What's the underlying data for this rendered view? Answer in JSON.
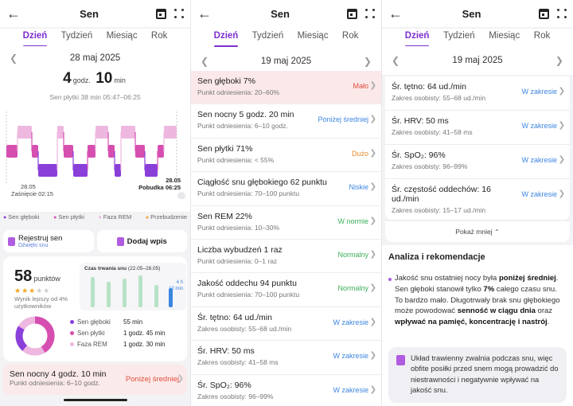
{
  "colors": {
    "accent": "#7d2fd0",
    "deep": "#8a3fd9",
    "light": "#d64fb0",
    "rem": "#eeb7e0",
    "wake": "#f2a13a",
    "warn": "#e04d3d",
    "ok": "#3cae5a",
    "info": "#3d86e0",
    "orange": "#e88a2c"
  },
  "phone1": {
    "back_icon": "arrow-left-icon",
    "title": "Sen",
    "tabs": [
      "Dzień",
      "Tydzień",
      "Miesiąc",
      "Rok"
    ],
    "date": "28 maj 2025",
    "duration": {
      "h": "4",
      "h_unit": "godz.",
      "m": "10",
      "m_unit": "min"
    },
    "light_sleep_line": "Sen płytki 38 min 05:47–06:25",
    "hypnogram": {
      "start_date": "28.05",
      "start_label": "Zaśnięcie 02:15",
      "end_date": "28.05",
      "end_label": "Pobudka 06:25"
    },
    "legend": [
      "Sen głęboki",
      "Sen płytki",
      "Faza REM",
      "Przebudzenie"
    ],
    "record_btn": {
      "label": "Rejestruj sen",
      "sub": "Dźwięki snu"
    },
    "add_btn": {
      "label": "Dodaj wpis"
    },
    "score": {
      "value": "58",
      "unit": "punktów",
      "stars_filled": 3,
      "stars_total": 5,
      "better_than": "Wynik lepszy od 4% użytkowników"
    },
    "mini_chart": {
      "title": "Czas trwania snu",
      "range": "(22.05–28.05)",
      "label_h": "4 h",
      "label_m": "10 min"
    },
    "breakdown": [
      {
        "name": "Sen głęboki",
        "value": "55 min"
      },
      {
        "name": "Sen płytki",
        "value": "1 godz. 45 min"
      },
      {
        "name": "Faza REM",
        "value": "1 godz. 30 min"
      }
    ],
    "bottom": {
      "title": "Sen nocny 4 godz. 10 min",
      "sub": "Punkt odniesienia: 6–10 godz.",
      "status": "Poniżej średniej"
    }
  },
  "phone2": {
    "title": "Sen",
    "tabs": [
      "Dzień",
      "Tydzień",
      "Miesiąc",
      "Rok"
    ],
    "date": "19 maj 2025",
    "rows": [
      {
        "title": "Sen głęboki 7%",
        "sub": "Punkt odniesienia: 20–60%",
        "status": "Mało",
        "tone": "warn"
      },
      {
        "title": "Sen nocny 5 godz. 20 min",
        "sub": "Punkt odniesienia: 6–10 godz.",
        "status": "Poniżej średniej",
        "tone": "info"
      },
      {
        "title": "Sen płytki 71%",
        "sub": "Punkt odniesienia: < 55%",
        "status": "Dużo",
        "tone": "orange"
      },
      {
        "title": "Ciągłość snu głębokiego 62 punktu",
        "sub": "Punkt odniesienia: 70–100 punktu",
        "status": "Niskie",
        "tone": "info"
      },
      {
        "title": "Sen REM 22%",
        "sub": "Punkt odniesienia: 10–30%",
        "status": "W normie",
        "tone": "ok"
      },
      {
        "title": "Liczba wybudzeń 1 raz",
        "sub": "Punkt odniesienia: 0–1 raz",
        "status": "Normalny",
        "tone": "ok"
      },
      {
        "title": "Jakość oddechu 94 punktu",
        "sub": "Punkt odniesienia: 70–100 punktu",
        "status": "Normalny",
        "tone": "ok"
      },
      {
        "title": "Śr. tętno: 64 ud./min",
        "sub": "Zakres osobisty: 55–68 ud./min",
        "status": "W zakresie",
        "tone": "info"
      },
      {
        "title": "Śr. HRV: 50 ms",
        "sub": "Zakres osobisty: 41–58 ms",
        "status": "W zakresie",
        "tone": "info"
      },
      {
        "title": "Śr. SpO₂: 96%",
        "sub": "Zakres osobisty: 96–99%",
        "status": "W zakresie",
        "tone": "info"
      }
    ]
  },
  "phone3": {
    "title": "Sen",
    "tabs": [
      "Dzień",
      "Tydzień",
      "Miesiąc",
      "Rok"
    ],
    "date": "19 maj 2025",
    "rows": [
      {
        "title": "Śr. tętno: 64 ud./min",
        "sub": "Zakres osobisty: 55–68 ud./min",
        "status": "W zakresie"
      },
      {
        "title": "Śr. HRV: 50 ms",
        "sub": "Zakres osobisty: 41–58 ms",
        "status": "W zakresie"
      },
      {
        "title": "Śr. SpO₂: 96%",
        "sub": "Zakres osobisty: 96–99%",
        "status": "W zakresie"
      },
      {
        "title": "Śr. częstość oddechów: 16 ud./min",
        "sub": "Zakres osobisty: 15–17 ud./min",
        "status": "W zakresie"
      }
    ],
    "show_less": "Pokaż mniej",
    "analysis_title": "Analiza i rekomendacje",
    "analysis": {
      "p1": "Jakość snu ostatniej nocy była ",
      "b1": "poniżej średniej",
      "p2": ". Sen głęboki stanowił tylko ",
      "b2": "7%",
      "p3": " całego czasu snu. To bardzo mało. Długotrwały brak snu głębokiego może powodować ",
      "b3": "senność w ciągu dnia",
      "p4": " oraz ",
      "b4": "wpływać na pamięć, koncentrację i nastrój",
      "p5": "."
    },
    "tip": "Układ trawienny zwalnia podczas snu, więc obfite posiłki przed snem mogą prowadzić do niestrawności i negatywnie wpływać na jakość snu."
  }
}
